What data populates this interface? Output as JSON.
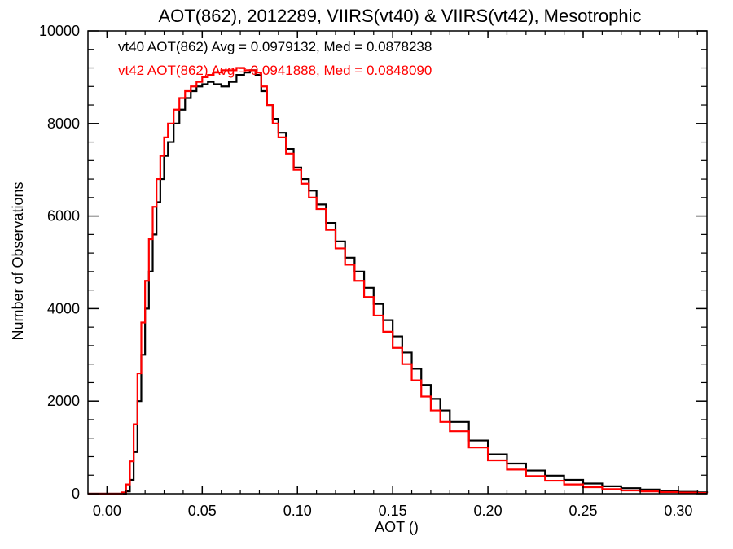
{
  "chart_data": {
    "type": "line",
    "title": "AOT(862), 2012289, VIIRS(vt40) & VIIRS(vt42), Mesotrophic",
    "xlabel": "AOT ()",
    "ylabel": "Number of Observations",
    "xlim": [
      -0.01,
      0.315
    ],
    "ylim": [
      0,
      10000
    ],
    "grid": false,
    "step": true,
    "x_ticks": [
      {
        "value": 0.0,
        "label": "0.00"
      },
      {
        "value": 0.05,
        "label": "0.05"
      },
      {
        "value": 0.1,
        "label": "0.10"
      },
      {
        "value": 0.15,
        "label": "0.15"
      },
      {
        "value": 0.2,
        "label": "0.20"
      },
      {
        "value": 0.25,
        "label": "0.25"
      },
      {
        "value": 0.3,
        "label": "0.30"
      }
    ],
    "y_ticks": [
      {
        "value": 0,
        "label": "0"
      },
      {
        "value": 2000,
        "label": "2000"
      },
      {
        "value": 4000,
        "label": "4000"
      },
      {
        "value": 6000,
        "label": "6000"
      },
      {
        "value": 8000,
        "label": "8000"
      },
      {
        "value": 10000,
        "label": "10000"
      }
    ],
    "annotations": [
      {
        "text": "vt40 AOT(862) Avg = 0.0979132, Med = 0.0878238",
        "color": "#000000"
      },
      {
        "text": "vt42 AOT(862) Avg = 0.0941888, Med = 0.0848090",
        "color": "#ff0000"
      }
    ],
    "series": [
      {
        "color": "#000000",
        "x": [
          -0.01,
          0.0,
          0.005,
          0.01,
          0.012,
          0.014,
          0.016,
          0.018,
          0.02,
          0.022,
          0.024,
          0.026,
          0.028,
          0.03,
          0.032,
          0.035,
          0.038,
          0.041,
          0.044,
          0.047,
          0.05,
          0.053,
          0.056,
          0.06,
          0.064,
          0.068,
          0.072,
          0.075,
          0.078,
          0.081,
          0.084,
          0.087,
          0.09,
          0.094,
          0.098,
          0.102,
          0.106,
          0.11,
          0.115,
          0.12,
          0.125,
          0.13,
          0.135,
          0.14,
          0.145,
          0.15,
          0.155,
          0.16,
          0.165,
          0.17,
          0.175,
          0.18,
          0.19,
          0.2,
          0.21,
          0.22,
          0.23,
          0.24,
          0.25,
          0.26,
          0.27,
          0.28,
          0.29,
          0.3,
          0.31,
          0.315
        ],
        "y": [
          0,
          0,
          0,
          50,
          300,
          900,
          2000,
          3000,
          4000,
          4800,
          5600,
          6300,
          6800,
          7300,
          7600,
          8000,
          8300,
          8550,
          8700,
          8800,
          8850,
          8900,
          8850,
          8800,
          8900,
          9050,
          9100,
          9150,
          9050,
          8700,
          8400,
          8100,
          7800,
          7450,
          7050,
          6800,
          6550,
          6250,
          5850,
          5450,
          5100,
          4800,
          4450,
          4100,
          3750,
          3400,
          3050,
          2700,
          2350,
          2050,
          1800,
          1550,
          1150,
          850,
          650,
          500,
          390,
          300,
          220,
          160,
          120,
          90,
          60,
          40,
          30,
          20
        ]
      },
      {
        "color": "#ff0000",
        "x": [
          -0.01,
          0.0,
          0.005,
          0.008,
          0.01,
          0.012,
          0.014,
          0.016,
          0.018,
          0.02,
          0.022,
          0.024,
          0.026,
          0.028,
          0.03,
          0.032,
          0.035,
          0.038,
          0.041,
          0.044,
          0.047,
          0.05,
          0.053,
          0.056,
          0.06,
          0.064,
          0.068,
          0.072,
          0.075,
          0.078,
          0.081,
          0.084,
          0.087,
          0.09,
          0.094,
          0.098,
          0.102,
          0.106,
          0.11,
          0.115,
          0.12,
          0.125,
          0.13,
          0.135,
          0.14,
          0.145,
          0.15,
          0.155,
          0.16,
          0.165,
          0.17,
          0.175,
          0.18,
          0.19,
          0.2,
          0.21,
          0.22,
          0.23,
          0.24,
          0.25,
          0.26,
          0.27,
          0.28,
          0.29,
          0.3,
          0.31,
          0.315
        ],
        "y": [
          0,
          0,
          0,
          30,
          200,
          700,
          1500,
          2600,
          3700,
          4600,
          5500,
          6200,
          6800,
          7300,
          7700,
          8000,
          8300,
          8550,
          8700,
          8800,
          8900,
          9000,
          9050,
          9100,
          9150,
          9150,
          9200,
          9150,
          9150,
          9100,
          8800,
          8400,
          8000,
          7700,
          7350,
          7000,
          6700,
          6400,
          6150,
          5700,
          5300,
          4950,
          4600,
          4250,
          3850,
          3500,
          3150,
          2800,
          2450,
          2100,
          1800,
          1550,
          1350,
          1000,
          720,
          520,
          380,
          280,
          200,
          140,
          100,
          70,
          50,
          35,
          25,
          15,
          10
        ]
      }
    ]
  }
}
